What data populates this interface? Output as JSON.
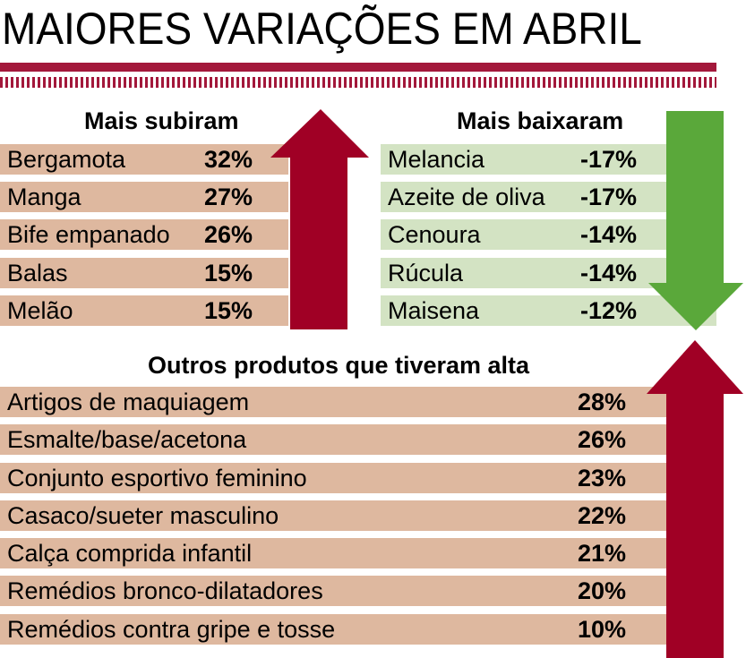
{
  "title": "MAIORES VARIAÇÕES EM ABRIL",
  "colors": {
    "accent": "#a3183b",
    "up_arrow": "#a00025",
    "down_arrow": "#5aa83a",
    "up_row": "#deb89f",
    "down_row": "#d3e3c3"
  },
  "subiram": {
    "heading": "Mais subiram",
    "items": [
      {
        "label": "Bergamota",
        "value": "32%"
      },
      {
        "label": "Manga",
        "value": "27%"
      },
      {
        "label": "Bife empanado",
        "value": "26%"
      },
      {
        "label": "Balas",
        "value": "15%"
      },
      {
        "label": "Melão",
        "value": "15%"
      }
    ]
  },
  "baixaram": {
    "heading": "Mais baixaram",
    "items": [
      {
        "label": "Melancia",
        "value": "-17%"
      },
      {
        "label": "Azeite de oliva",
        "value": "-17%"
      },
      {
        "label": "Cenoura",
        "value": "-14%"
      },
      {
        "label": "Rúcula",
        "value": "-14%"
      },
      {
        "label": "Maisena",
        "value": "-12%"
      }
    ]
  },
  "outros": {
    "heading": "Outros produtos que tiveram alta",
    "items": [
      {
        "label": "Artigos de maquiagem",
        "value": "28%"
      },
      {
        "label": "Esmalte/base/acetona",
        "value": "26%"
      },
      {
        "label": "Conjunto esportivo feminino",
        "value": "23%"
      },
      {
        "label": "Casaco/sueter masculino",
        "value": "22%"
      },
      {
        "label": "Calça comprida infantil",
        "value": "21%"
      },
      {
        "label": "Remédios bronco-dilatadores",
        "value": "20%"
      },
      {
        "label": "Remédios contra gripe e tosse",
        "value": "10%"
      }
    ]
  }
}
